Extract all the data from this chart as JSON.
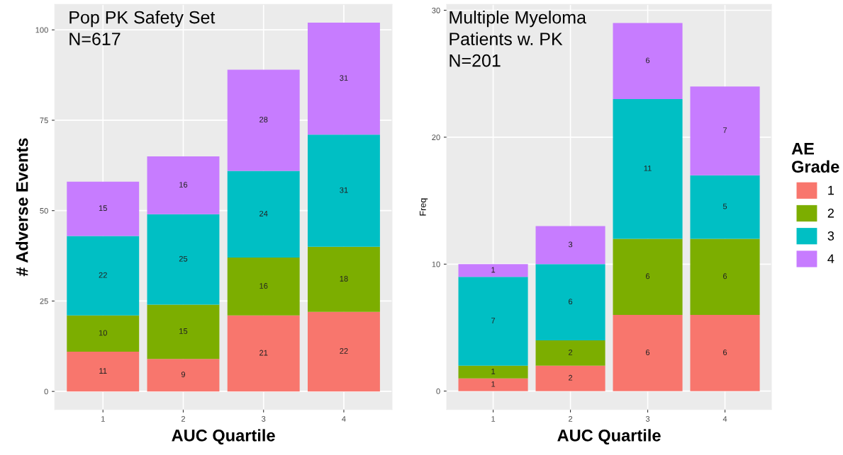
{
  "chart_data": [
    {
      "type": "bar",
      "stacked": true,
      "categories": [
        "1",
        "2",
        "3",
        "4"
      ],
      "xlabel": "AUC Quartile",
      "ylabel": "# Adverse Events",
      "ylim": [
        -5,
        107
      ],
      "yticks": [
        0,
        25,
        50,
        75,
        100
      ],
      "grid": true,
      "legend": "right",
      "legend_title": "AE\nGrade",
      "data_labels": true,
      "annotations": [
        "Pop PK Safety Set\nN=617"
      ],
      "series": [
        {
          "name": "1",
          "color": "#f8766d",
          "values": [
            11,
            9,
            21,
            22
          ]
        },
        {
          "name": "2",
          "color": "#7cae00",
          "values": [
            10,
            15,
            16,
            18
          ]
        },
        {
          "name": "3",
          "color": "#00bfc4",
          "values": [
            22,
            25,
            24,
            31
          ]
        },
        {
          "name": "4",
          "color": "#c77cff",
          "values": [
            15,
            16,
            28,
            31
          ]
        }
      ]
    },
    {
      "type": "bar",
      "stacked": true,
      "categories": [
        "1",
        "2",
        "3",
        "4"
      ],
      "xlabel": "AUC Quartile",
      "ylabel": "Freq",
      "ylim": [
        -1.45,
        30.45
      ],
      "yticks": [
        0,
        10,
        20,
        30
      ],
      "grid": true,
      "data_labels": true,
      "annotations": [
        "Multiple Myeloma\nPatients w. PK\nN=201"
      ],
      "series": [
        {
          "name": "1",
          "color": "#f8766d",
          "values": [
            1,
            2,
            6,
            6
          ]
        },
        {
          "name": "2",
          "color": "#7cae00",
          "values": [
            1,
            2,
            6,
            6
          ]
        },
        {
          "name": "3",
          "color": "#00bfc4",
          "values": [
            7,
            6,
            11,
            5
          ]
        },
        {
          "name": "4",
          "color": "#c77cff",
          "values": [
            1,
            3,
            6,
            7
          ]
        }
      ]
    }
  ]
}
